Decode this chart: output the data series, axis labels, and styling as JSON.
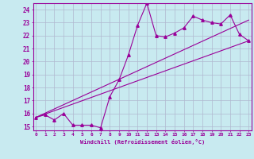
{
  "xlabel": "Windchill (Refroidissement éolien,°C)",
  "bg_color": "#c8eaf0",
  "line_color": "#990099",
  "grid_color": "#b0b8d0",
  "xmin": 0,
  "xmax": 23,
  "ymin": 15,
  "ymax": 24,
  "line1_x": [
    0,
    1,
    2,
    3,
    4,
    5,
    6,
    7,
    8,
    9,
    10,
    11,
    12,
    13,
    14,
    15,
    16,
    17,
    18,
    19,
    20,
    21,
    22,
    23
  ],
  "line1_y": [
    15.7,
    15.9,
    15.5,
    16.0,
    15.1,
    15.1,
    15.1,
    14.9,
    17.3,
    18.6,
    20.5,
    22.8,
    24.5,
    22.0,
    21.9,
    22.2,
    22.6,
    23.5,
    23.2,
    23.0,
    22.9,
    23.6,
    22.1,
    21.6
  ],
  "line2_x": [
    0,
    23
  ],
  "line2_y": [
    15.7,
    21.6
  ],
  "line3_x": [
    0,
    23
  ],
  "line3_y": [
    15.7,
    23.2
  ],
  "marker": "^"
}
